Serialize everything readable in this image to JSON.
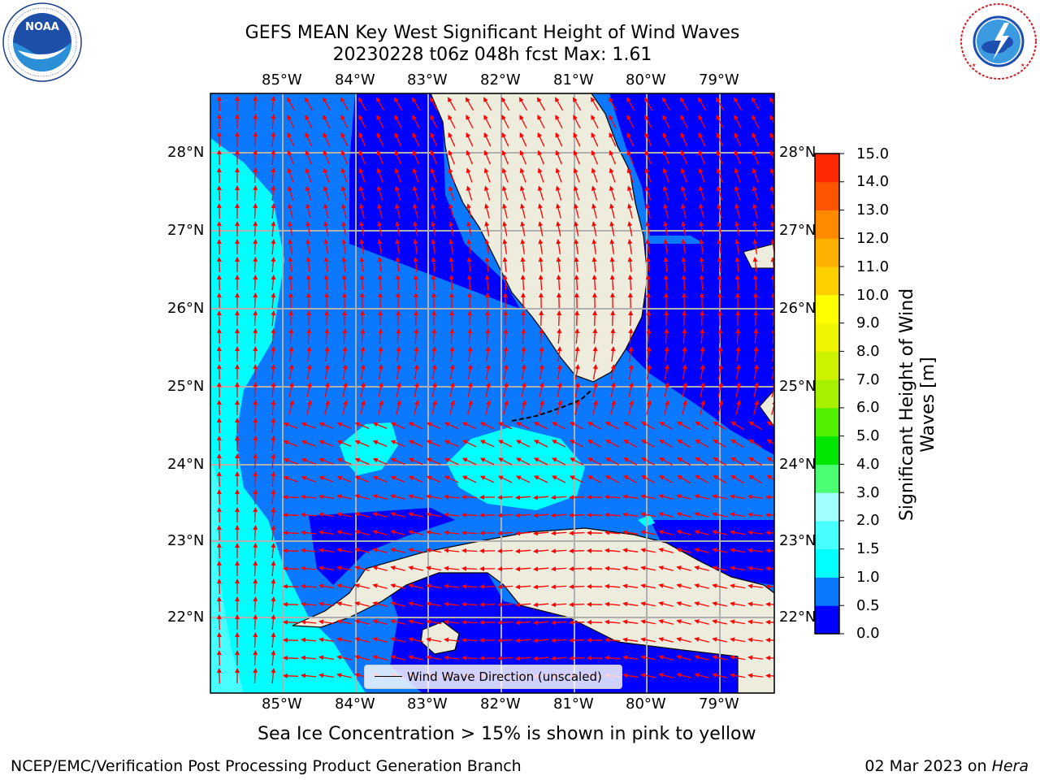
{
  "title": {
    "line1": "GEFS MEAN Key West Significant Height of Wind Waves",
    "line2": "20230228 t06z 048h fcst   Max: 1.61"
  },
  "logos": {
    "noaa_text": "NOAA",
    "noaa_ring": "NATIONAL OCEANIC AND ATMOSPHERIC ADMINISTRATION · U.S. DEPARTMENT OF COMMERCE",
    "nws_ring": "NATIONAL WEATHER SERVICE"
  },
  "map": {
    "lon_labels": [
      "85°W",
      "84°W",
      "83°W",
      "82°W",
      "81°W",
      "80°W",
      "79°W"
    ],
    "lat_labels": [
      "28°N",
      "27°N",
      "26°N",
      "25°N",
      "24°N",
      "23°N",
      "22°N"
    ],
    "lon_range": [
      -86.0,
      -78.3
    ],
    "lat_range": [
      21.0,
      28.75
    ],
    "grid": true,
    "land_color": "#eeecdc",
    "arrow_color": "#ff0000",
    "legend": {
      "label": "Wind Wave Direction (unscaled)",
      "placement": "bottom-center"
    }
  },
  "colorbar": {
    "label_line1": "Significant Height of Wind",
    "label_line2": "Waves [m]",
    "bounds": [
      0.0,
      0.5,
      1.0,
      1.5,
      2.0,
      3.0,
      4.0,
      5.0,
      6.0,
      7.0,
      8.0,
      9.0,
      10.0,
      11.0,
      12.0,
      13.0,
      14.0,
      15.0
    ],
    "tick_labels": [
      "0.0",
      "0.5",
      "1.0",
      "1.5",
      "2.0",
      "3.0",
      "4.0",
      "5.0",
      "6.0",
      "7.0",
      "8.0",
      "9.0",
      "10.0",
      "11.0",
      "12.0",
      "13.0",
      "14.0",
      "15.0"
    ],
    "colors": [
      "#0000ff",
      "#0a78ff",
      "#00ffff",
      "#47ffff",
      "#a2ffff",
      "#4cff72",
      "#00e600",
      "#50f000",
      "#a6f000",
      "#ccf200",
      "#eef600",
      "#ffff00",
      "#ffd000",
      "#ffb100",
      "#ff8a00",
      "#ff5500",
      "#ff2800"
    ]
  },
  "subtitle": "Sea Ice Concentration > 15% is shown in pink to yellow",
  "footer": {
    "left": "NCEP/EMC/Verification Post Processing Product Generation Branch",
    "right_date": "02 Mar 2023 on ",
    "right_machine": "Hera"
  }
}
